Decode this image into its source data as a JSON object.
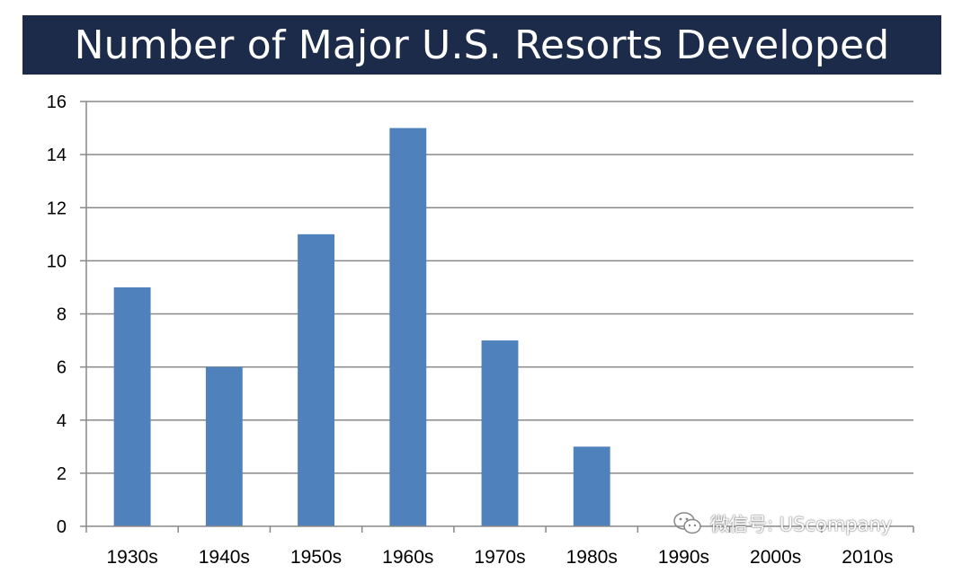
{
  "title": "Number of Major U.S. Resorts Developed",
  "watermark": {
    "text": "微信号: UScompany",
    "icon": "wechat-logo-icon"
  },
  "colors": {
    "banner": "#1c2b4a",
    "bar": "#4f81bd",
    "grid": "#888888",
    "axis": "#888888"
  },
  "chart_data": {
    "type": "bar",
    "title": "Number of Major U.S. Resorts Developed",
    "xlabel": "",
    "ylabel": "",
    "categories": [
      "1930s",
      "1940s",
      "1950s",
      "1960s",
      "1970s",
      "1980s",
      "1990s",
      "2000s",
      "2010s"
    ],
    "values": [
      9,
      6,
      11,
      15,
      7,
      3,
      0,
      0,
      0
    ],
    "ylim": [
      0,
      16
    ],
    "yticks": [
      0,
      2,
      4,
      6,
      8,
      10,
      12,
      14,
      16
    ],
    "grid": true,
    "legend": "none"
  }
}
